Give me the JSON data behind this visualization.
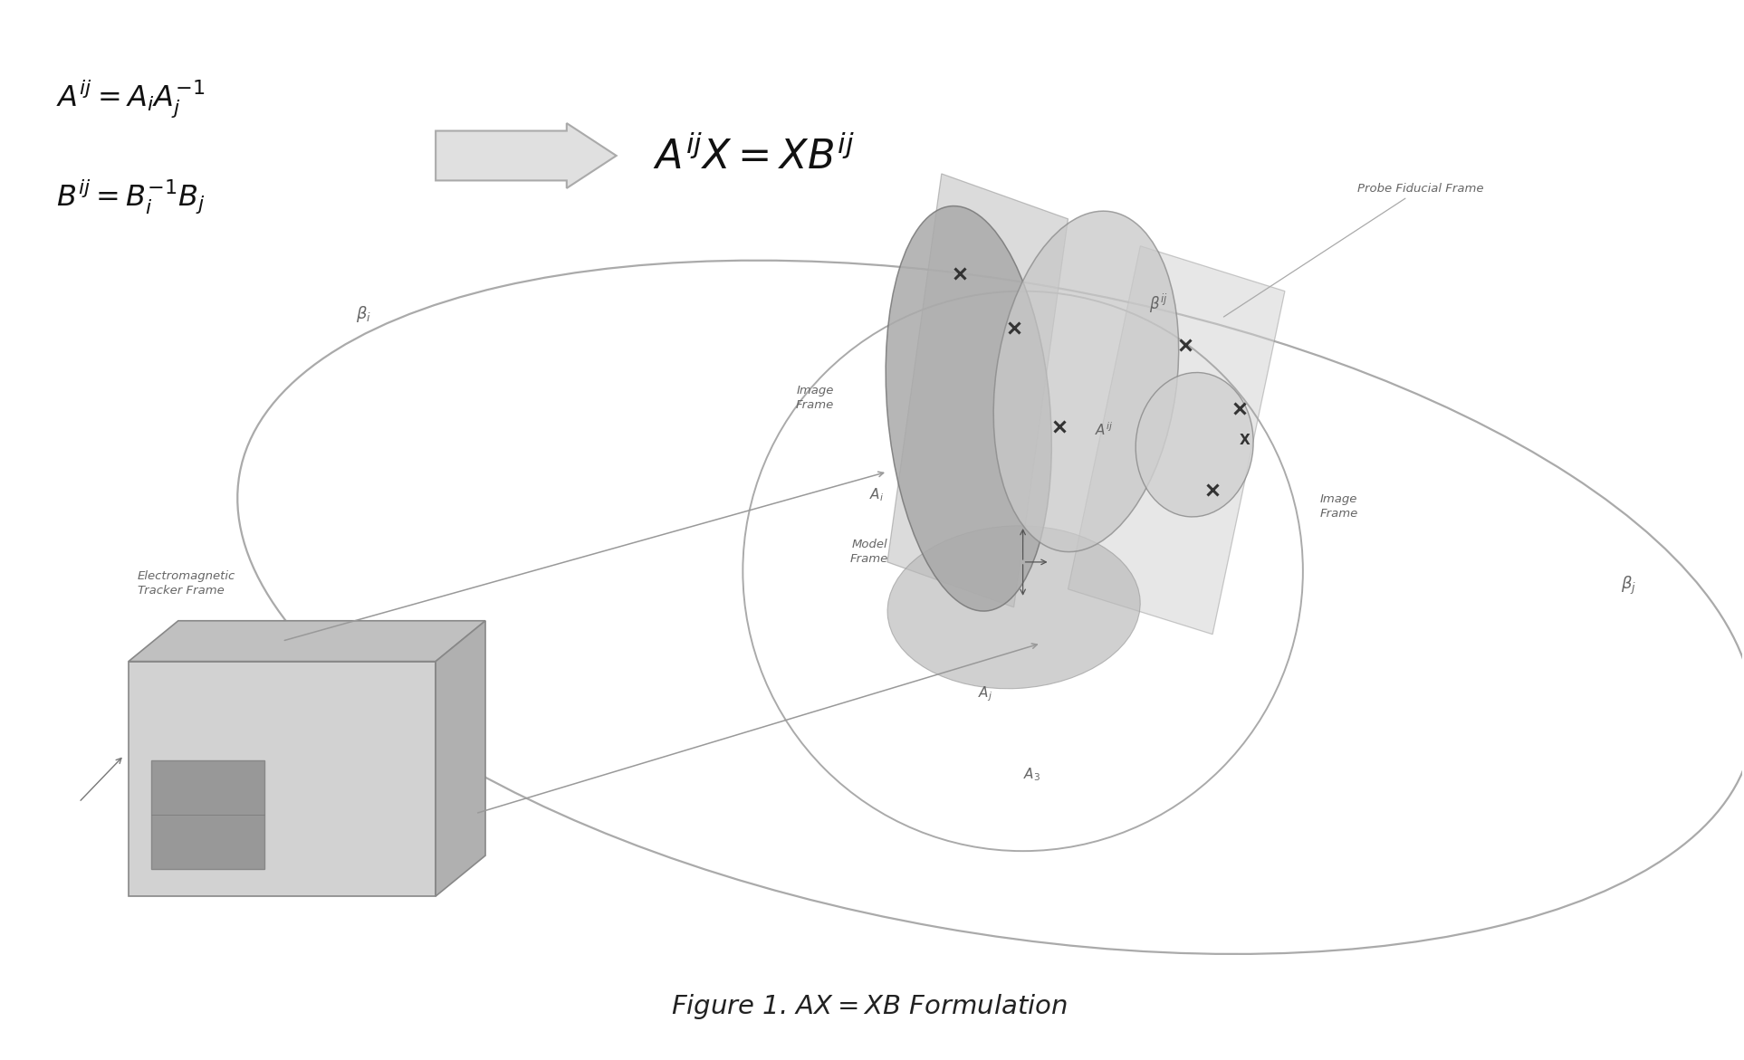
{
  "title": "Figure 1. $AX = XB$ Formulation",
  "bg_color": "#ffffff",
  "formula_line1": "$A^{ij} = A_iA_j^{-1}$",
  "formula_line2": "$B^{ij} = B_i^{-1}B_j$",
  "center_formula": "$A^{ij}X = XB^{ij}$",
  "label_probe_fiducial": "Probe Fiducial Frame",
  "label_em_tracker": "Electromagnetic\nTracker Frame",
  "label_image_frame_left": "Image\nFrame",
  "label_image_frame_right": "Image\nFrame",
  "label_model_frame": "Model\nFrame",
  "label_beta_i": "$\\mathit{\\beta_i}$",
  "label_beta_j": "$\\mathit{\\beta_j}$",
  "label_beta_ij": "$\\mathit{\\beta^{ij}}$",
  "label_Ai": "$A_i$",
  "label_Aj": "$A_j$",
  "label_Aij": "$A^{ij}$",
  "label_A3": "$A_3$",
  "text_color": "#777777",
  "label_color": "#666666",
  "formula_color": "#111111",
  "edge_color": "#999999",
  "fill_light": "#d8d8d8",
  "fill_mid": "#c0c0c0",
  "fill_dark": "#aaaaaa",
  "fill_hatched": "#b8b8b8"
}
